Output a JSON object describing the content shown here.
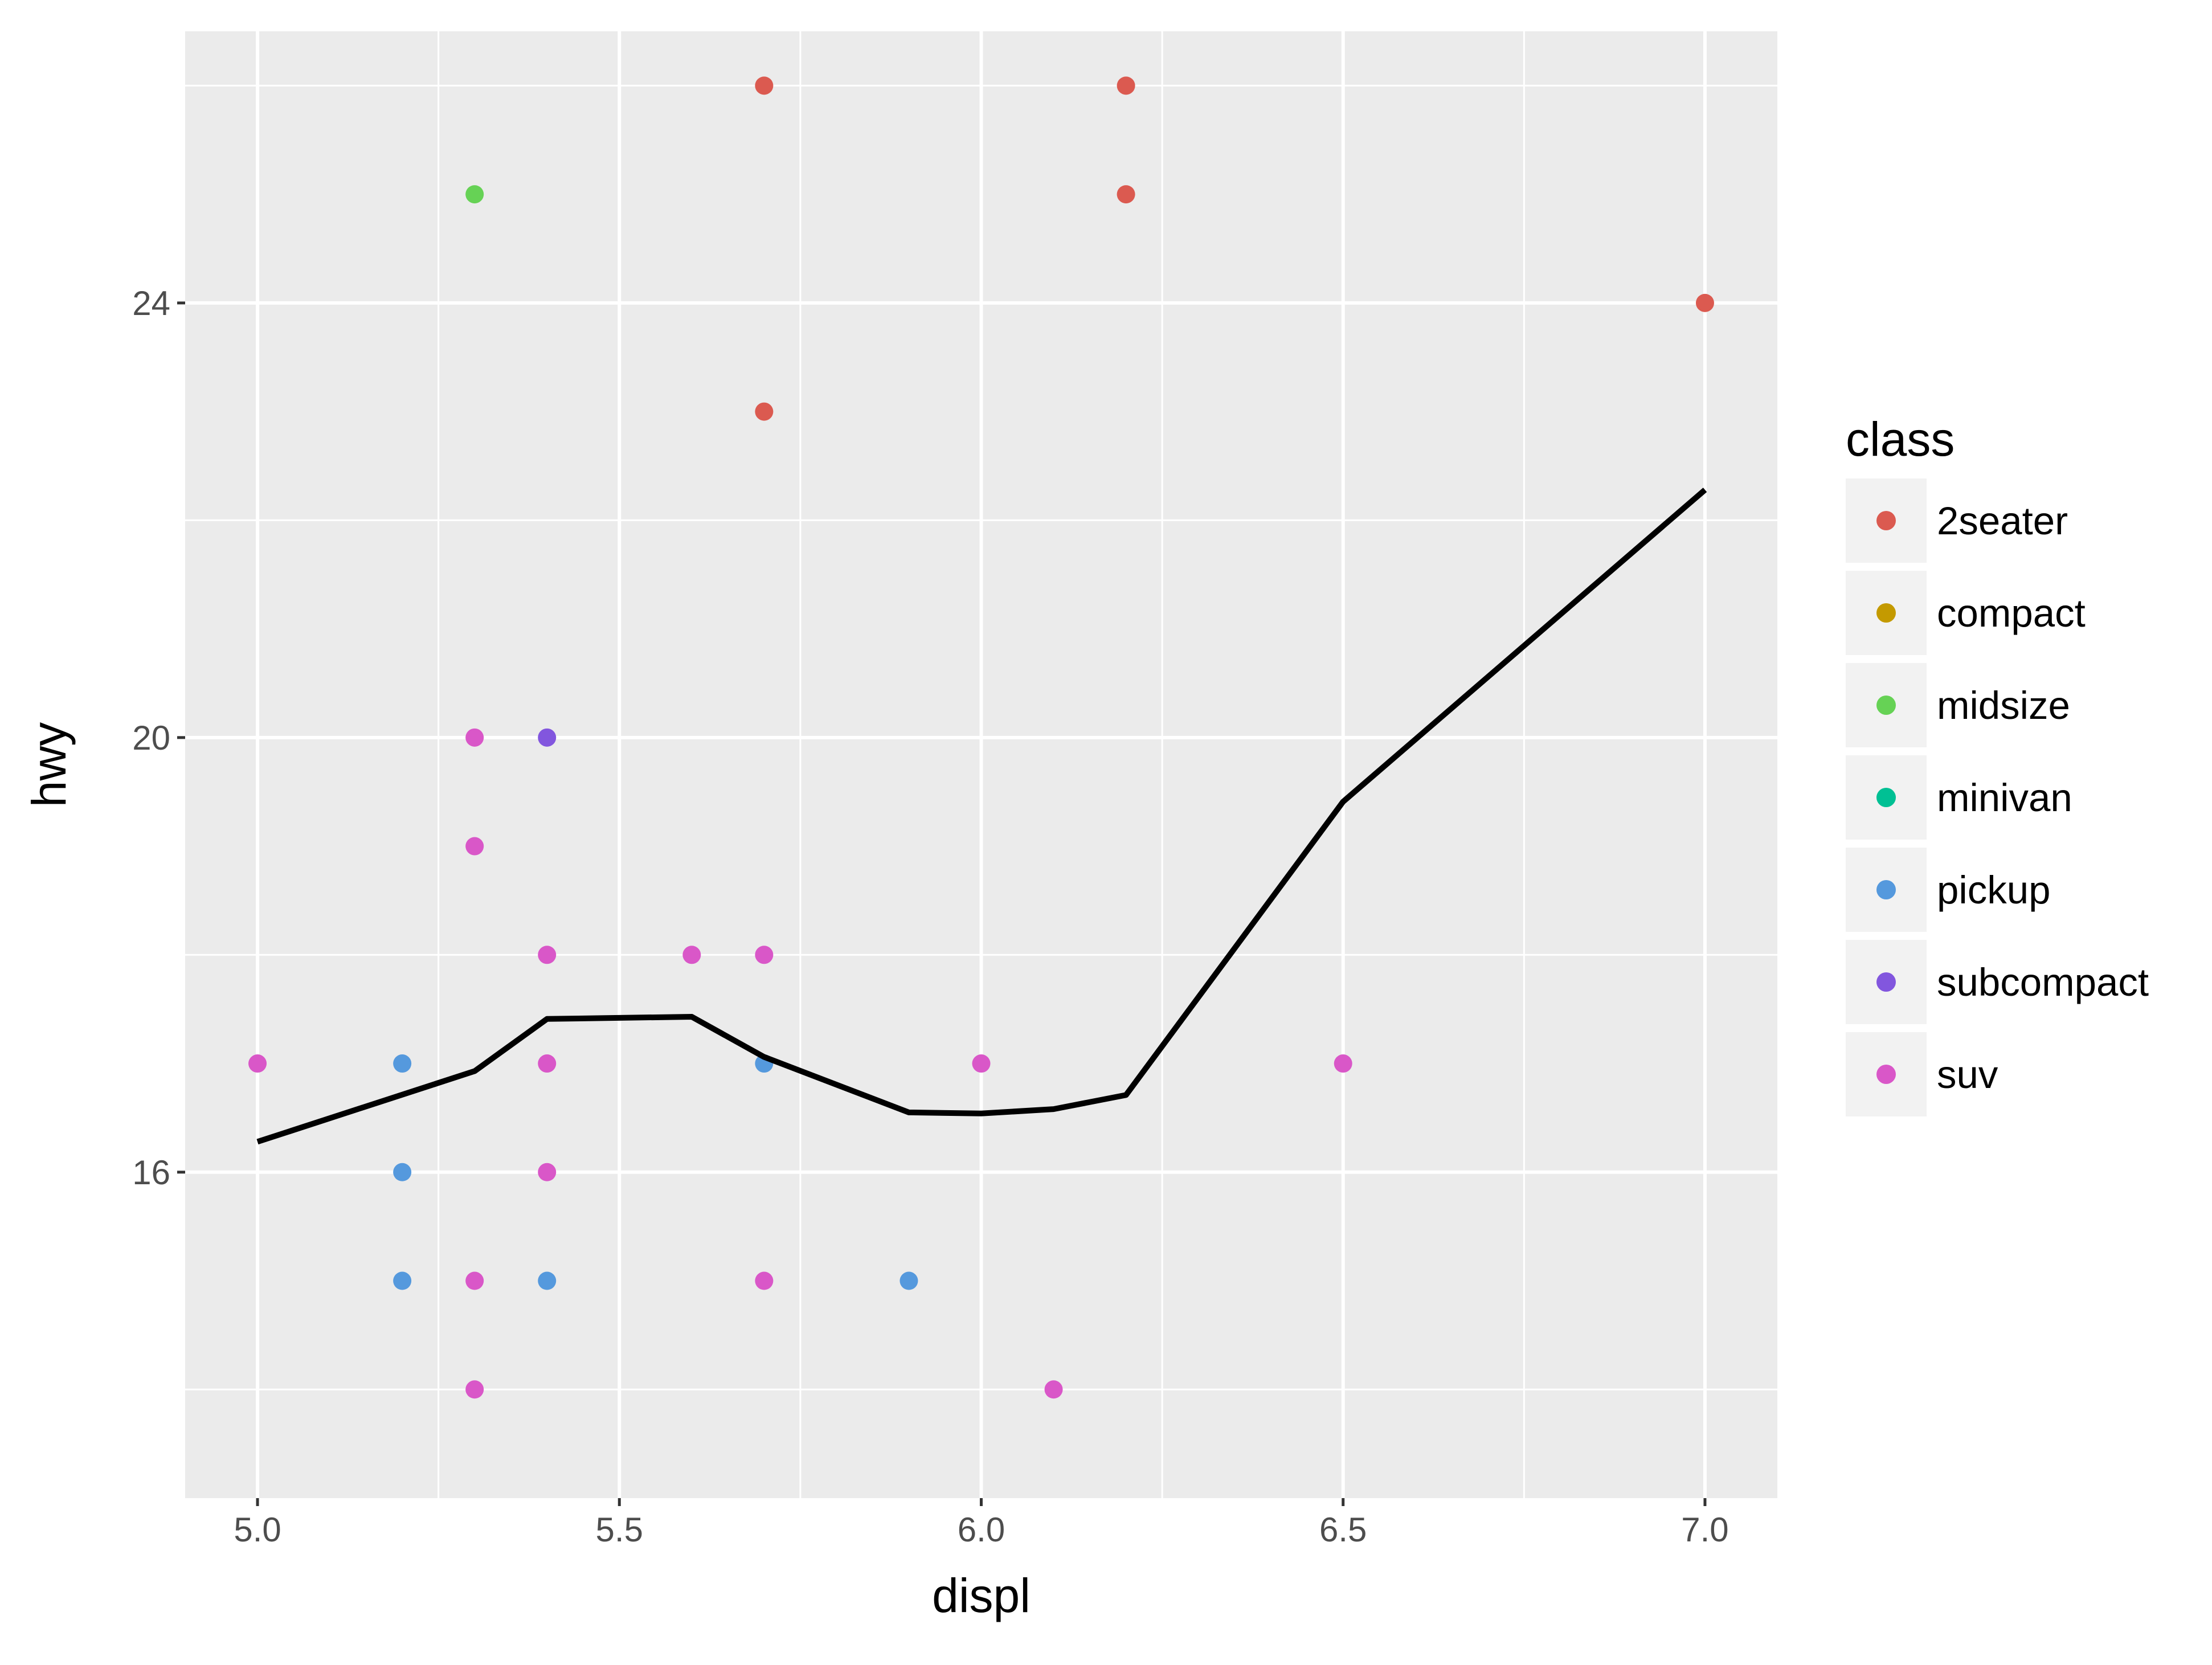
{
  "chart_data": {
    "type": "scatter",
    "title": "",
    "xlabel": "displ",
    "ylabel": "hwy",
    "xlim": [
      4.9,
      7.1
    ],
    "ylim": [
      13.0,
      26.5
    ],
    "x_ticks": [
      5.0,
      5.5,
      6.0,
      6.5,
      7.0
    ],
    "x_tick_labels": [
      "5.0",
      "5.5",
      "6.0",
      "6.5",
      "7.0"
    ],
    "x_minor": [
      5.25,
      5.75,
      6.25,
      6.75
    ],
    "y_ticks": [
      16,
      20,
      24
    ],
    "y_tick_labels": [
      "16",
      "20",
      "24"
    ],
    "y_minor": [
      14,
      18,
      22,
      26
    ],
    "grid": true,
    "panel_background": "#EBEBEB",
    "legend": {
      "title": "class",
      "position": "right",
      "entries": [
        {
          "label": "2seater",
          "color": "#F8766D"
        },
        {
          "label": "compact",
          "color": "#C49A00"
        },
        {
          "label": "midsize",
          "color": "#53B400"
        },
        {
          "label": "minivan",
          "color": "#00C094"
        },
        {
          "label": "pickup",
          "color": "#00B6EB"
        },
        {
          "label": "subcompact",
          "color": "#A58AFF"
        },
        {
          "label": "suv",
          "color": "#FB61D7"
        }
      ]
    },
    "series": [
      {
        "name": "2seater",
        "color": "#DB5A50",
        "points": [
          [
            5.7,
            26
          ],
          [
            6.2,
            26
          ],
          [
            6.2,
            25
          ],
          [
            7.0,
            24
          ],
          [
            5.7,
            23
          ]
        ]
      },
      {
        "name": "midsize",
        "color": "#66D255",
        "points": [
          [
            5.3,
            25
          ]
        ]
      },
      {
        "name": "pickup",
        "color": "#5599DD",
        "points": [
          [
            5.2,
            17
          ],
          [
            5.2,
            16
          ],
          [
            5.2,
            15
          ],
          [
            5.4,
            15
          ],
          [
            5.7,
            17
          ],
          [
            5.9,
            15
          ]
        ]
      },
      {
        "name": "subcompact",
        "color": "#8256DE",
        "points": [
          [
            5.4,
            20
          ]
        ]
      },
      {
        "name": "suv",
        "color": "#D957C8",
        "points": [
          [
            5.0,
            17
          ],
          [
            5.3,
            20
          ],
          [
            5.3,
            19
          ],
          [
            5.3,
            15
          ],
          [
            5.3,
            14
          ],
          [
            5.4,
            18
          ],
          [
            5.4,
            17
          ],
          [
            5.4,
            16
          ],
          [
            5.6,
            18
          ],
          [
            5.7,
            18
          ],
          [
            5.7,
            15
          ],
          [
            6.0,
            17
          ],
          [
            6.1,
            14
          ],
          [
            6.5,
            17
          ]
        ]
      }
    ],
    "smooth_line": {
      "color": "#000000",
      "points": [
        [
          5.0,
          16.28
        ],
        [
          5.3,
          16.93
        ],
        [
          5.4,
          17.41
        ],
        [
          5.6,
          17.43
        ],
        [
          5.7,
          17.06
        ],
        [
          5.9,
          16.55
        ],
        [
          6.0,
          16.54
        ],
        [
          6.1,
          16.58
        ],
        [
          6.2,
          16.71
        ],
        [
          6.5,
          19.41
        ],
        [
          7.0,
          22.28
        ]
      ]
    }
  }
}
